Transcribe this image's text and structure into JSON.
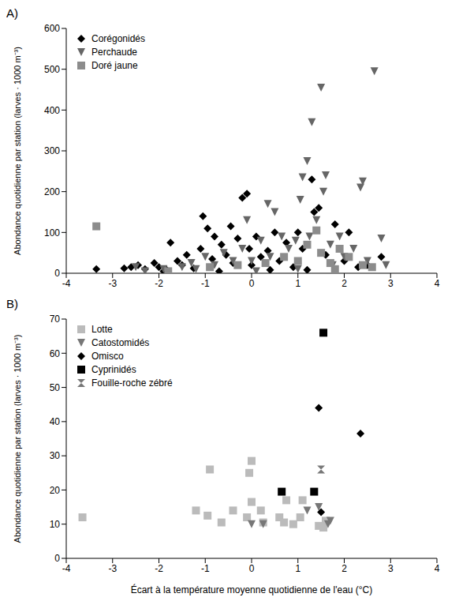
{
  "chart_data": [
    {
      "type": "scatter",
      "title": "A)",
      "y_label": "Abondance quotidienne par station (larves · 1000 m⁻³)",
      "legend": "upper left",
      "grid": false,
      "xlim": [
        -4,
        4
      ],
      "xticks": [
        -4,
        -3,
        -2,
        -1,
        0,
        1,
        2,
        3,
        4
      ],
      "ylim": [
        0,
        600
      ],
      "yticks": [
        0,
        100,
        200,
        300,
        400,
        500,
        600
      ],
      "series": [
        {
          "name": "Corégonidés",
          "color": "#000000",
          "marker": "diamond",
          "x": [
            -3.35,
            -2.75,
            -2.6,
            -2.45,
            -2.3,
            -2.1,
            -2.0,
            -1.85,
            -1.75,
            -1.6,
            -1.5,
            -1.4,
            -1.25,
            -1.1,
            -1.05,
            -0.95,
            -0.85,
            -0.8,
            -0.65,
            -0.55,
            -0.45,
            -0.4,
            -0.3,
            -0.2,
            -0.1,
            -0.05,
            0,
            0.1,
            0.2,
            0.35,
            0.5,
            0.6,
            0.75,
            0.9,
            1.0,
            1.1,
            1.3,
            1.35,
            1.45,
            1.6,
            1.8,
            2.0,
            2.1,
            2.3,
            2.5,
            2.8,
            -1.9,
            -0.7,
            0.4,
            1.2
          ],
          "values": [
            10,
            12,
            15,
            20,
            10,
            25,
            15,
            10,
            75,
            30,
            20,
            45,
            12,
            60,
            140,
            110,
            35,
            90,
            70,
            45,
            115,
            25,
            85,
            185,
            195,
            60,
            20,
            90,
            40,
            55,
            100,
            30,
            75,
            15,
            100,
            60,
            230,
            150,
            160,
            45,
            120,
            30,
            100,
            15,
            20,
            40,
            5,
            5,
            8,
            8
          ]
        },
        {
          "name": "Perchaude",
          "color": "#666666",
          "marker": "triangle-down",
          "x": [
            -2.5,
            -2.3,
            -1.9,
            -1.5,
            -1.2,
            -1.0,
            -0.8,
            -0.6,
            -0.4,
            -0.2,
            -0.1,
            0,
            0.2,
            0.35,
            0.4,
            0.5,
            0.65,
            0.8,
            0.95,
            1.05,
            1.1,
            1.2,
            1.25,
            1.3,
            1.4,
            1.5,
            1.55,
            1.6,
            1.7,
            1.75,
            1.9,
            2.0,
            2.2,
            2.35,
            2.4,
            2.5,
            2.65,
            2.8,
            2.9,
            1.0,
            0.1,
            -1.3
          ],
          "values": [
            15,
            5,
            10,
            15,
            10,
            40,
            20,
            50,
            30,
            60,
            130,
            30,
            80,
            170,
            40,
            150,
            90,
            60,
            80,
            180,
            235,
            275,
            90,
            370,
            130,
            455,
            200,
            240,
            70,
            20,
            90,
            40,
            60,
            210,
            225,
            30,
            495,
            85,
            20,
            10,
            5,
            25
          ]
        },
        {
          "name": "Doré jaune",
          "color": "#8c8c8c",
          "marker": "square",
          "x": [
            -3.35,
            -1.8,
            -0.9,
            -0.3,
            0.3,
            0.7,
            1.0,
            1.2,
            1.4,
            1.5,
            1.7,
            1.9,
            2.1,
            2.4,
            2.6,
            1.8
          ],
          "values": [
            115,
            5,
            15,
            20,
            25,
            40,
            30,
            70,
            105,
            50,
            25,
            60,
            40,
            20,
            15,
            10
          ]
        }
      ]
    },
    {
      "type": "scatter",
      "title": "B)",
      "x_label": "Écart à la température moyenne quotidienne de l'eau (°C)",
      "y_label": "Abondance quotidienne par station (larves · 1000 m⁻³)",
      "legend": "upper left",
      "grid": false,
      "xlim": [
        -4,
        4
      ],
      "xticks": [
        -4,
        -3,
        -2,
        -1,
        0,
        1,
        2,
        3,
        4
      ],
      "ylim": [
        0,
        70
      ],
      "yticks": [
        0,
        10,
        20,
        30,
        40,
        50,
        60,
        70
      ],
      "series": [
        {
          "name": "Lotte",
          "color": "#bbbbbb",
          "marker": "square",
          "x": [
            -3.65,
            -1.2,
            -0.95,
            -0.9,
            -0.65,
            -0.4,
            -0.1,
            -0.05,
            0,
            0,
            0.2,
            0.25,
            0.6,
            0.7,
            0.75,
            0.9,
            1.05,
            1.1,
            1.45,
            1.55,
            1.6
          ],
          "values": [
            12,
            14,
            12.5,
            26,
            10.5,
            14,
            12,
            25,
            28.5,
            16.5,
            14,
            10.5,
            12,
            10.5,
            17,
            10,
            12,
            17,
            9.5,
            9,
            11
          ]
        },
        {
          "name": "Catostomidés",
          "color": "#777777",
          "marker": "triangle-down",
          "x": [
            0,
            0.25,
            1.2,
            1.45,
            1.7,
            1.65
          ],
          "values": [
            10,
            10,
            14,
            15,
            11,
            10
          ]
        },
        {
          "name": "Omisco",
          "color": "#000000",
          "marker": "diamond",
          "x": [
            1.45,
            2.35,
            1.5
          ],
          "values": [
            44,
            36.5,
            13.5
          ]
        },
        {
          "name": "Cyprinidés",
          "color": "#000000",
          "marker": "square",
          "x": [
            0.65,
            1.35,
            1.55
          ],
          "values": [
            19.5,
            19.5,
            66
          ]
        },
        {
          "name": "Fouille-roche zébré",
          "color": "#777777",
          "marker": "hourglass",
          "x": [
            1.5
          ],
          "values": [
            26
          ]
        }
      ]
    }
  ]
}
